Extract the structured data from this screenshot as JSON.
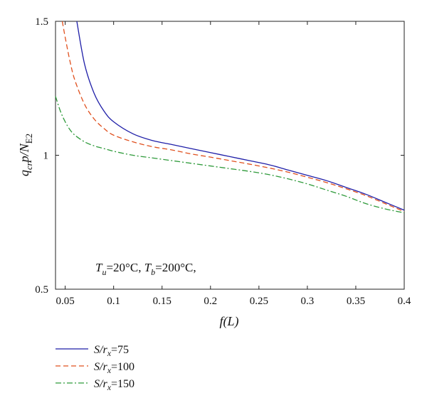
{
  "chart_data": {
    "type": "line",
    "xlabel": {
      "italic": "f",
      "rest": "(L)"
    },
    "ylabel": {
      "q": "q",
      "q_sub": "cr",
      "p": "p/N",
      "n_sub": "E2"
    },
    "xlim": [
      0.04,
      0.4
    ],
    "ylim": [
      0.5,
      1.5
    ],
    "xticks": [
      "0.05",
      "0.1",
      "0.15",
      "0.2",
      "0.25",
      "0.3",
      "0.35",
      "0.4"
    ],
    "xtick_values": [
      0.05,
      0.1,
      0.15,
      0.2,
      0.25,
      0.3,
      0.35,
      0.4
    ],
    "yticks": [
      "0.5",
      "1",
      "1.5"
    ],
    "ytick_values": [
      0.5,
      1,
      1.5
    ],
    "grid": false,
    "legend_placement": "below-left",
    "annotation": {
      "tu_sym": "T",
      "tu_sub": "u",
      "tu_val": "=20°C, ",
      "tb_sym": "T",
      "tb_sub": "b",
      "tb_val": "=200°C,"
    },
    "series": [
      {
        "name": "S/r_x=75",
        "legend": {
          "s": "S/",
          "r": "r",
          "sub": "x",
          "val": "=75"
        },
        "color": "#1f1fa8",
        "dash": "solid",
        "x": [
          0.062,
          0.07,
          0.08,
          0.09,
          0.1,
          0.12,
          0.14,
          0.16,
          0.18,
          0.2,
          0.22,
          0.24,
          0.26,
          0.28,
          0.3,
          0.32,
          0.34,
          0.36,
          0.38,
          0.4
        ],
        "y": [
          1.5,
          1.34,
          1.23,
          1.165,
          1.125,
          1.08,
          1.055,
          1.04,
          1.025,
          1.01,
          0.995,
          0.98,
          0.965,
          0.945,
          0.925,
          0.905,
          0.88,
          0.855,
          0.825,
          0.795
        ]
      },
      {
        "name": "S/r_x=100",
        "legend": {
          "s": "S/",
          "r": "r",
          "sub": "x",
          "val": "=100"
        },
        "color": "#e0501e",
        "dash": "dashed",
        "x": [
          0.047,
          0.05,
          0.055,
          0.06,
          0.07,
          0.08,
          0.09,
          0.1,
          0.12,
          0.14,
          0.16,
          0.18,
          0.2,
          0.22,
          0.24,
          0.26,
          0.28,
          0.3,
          0.32,
          0.34,
          0.36,
          0.38,
          0.4
        ],
        "y": [
          1.5,
          1.44,
          1.35,
          1.28,
          1.19,
          1.135,
          1.1,
          1.075,
          1.05,
          1.032,
          1.02,
          1.005,
          0.993,
          0.98,
          0.967,
          0.953,
          0.937,
          0.918,
          0.898,
          0.875,
          0.85,
          0.82,
          0.79
        ]
      },
      {
        "name": "S/r_x=150",
        "legend": {
          "s": "S/",
          "r": "r",
          "sub": "x",
          "val": "=150"
        },
        "color": "#2e9a3a",
        "dash": "dashdot",
        "x": [
          0.04,
          0.045,
          0.05,
          0.055,
          0.06,
          0.07,
          0.08,
          0.09,
          0.1,
          0.12,
          0.14,
          0.16,
          0.18,
          0.2,
          0.22,
          0.24,
          0.26,
          0.28,
          0.3,
          0.32,
          0.34,
          0.36,
          0.38,
          0.4
        ],
        "y": [
          1.22,
          1.165,
          1.125,
          1.095,
          1.075,
          1.05,
          1.035,
          1.025,
          1.015,
          1.0,
          0.99,
          0.98,
          0.97,
          0.96,
          0.95,
          0.94,
          0.928,
          0.912,
          0.893,
          0.87,
          0.847,
          0.82,
          0.8,
          0.785
        ]
      }
    ]
  }
}
